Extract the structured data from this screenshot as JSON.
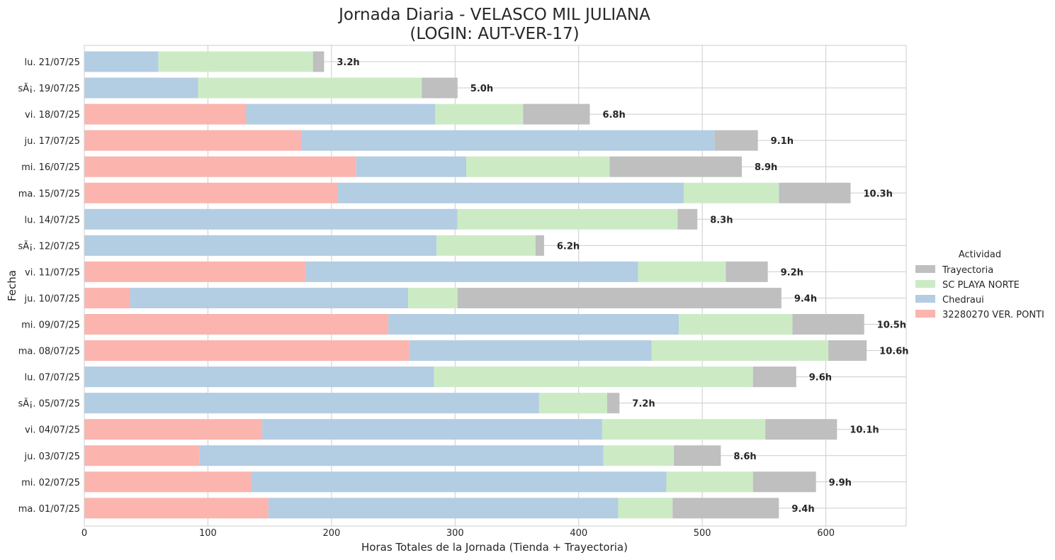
{
  "chart_data": {
    "type": "bar",
    "orientation": "horizontal",
    "stacked": true,
    "title": "Jornada Diaria - VELASCO MIL JULIANA",
    "subtitle": "(LOGIN: AUT-VER-17)",
    "xlabel": "Horas Totales de la Jornada (Tienda + Trayectoria)",
    "ylabel": "Fecha",
    "xlim": [
      0,
      665
    ],
    "xticks": [
      0,
      100,
      200,
      300,
      400,
      500,
      600
    ],
    "grid": true,
    "legend_title": "Actividad",
    "legend_placement": "right",
    "categories": [
      "lu. 21/07/25",
      "sÃ¡. 19/07/25",
      "vi. 18/07/25",
      "ju. 17/07/25",
      "mi. 16/07/25",
      "ma. 15/07/25",
      "lu. 14/07/25",
      "sÃ¡. 12/07/25",
      "vi. 11/07/25",
      "ju. 10/07/25",
      "mi. 09/07/25",
      "ma. 08/07/25",
      "lu. 07/07/25",
      "sÃ¡. 05/07/25",
      "vi. 04/07/25",
      "ju. 03/07/25",
      "mi. 02/07/25",
      "ma. 01/07/25"
    ],
    "series": [
      {
        "name": "32280270 VER. PONTI",
        "color": "#fbb4ae",
        "values": [
          0,
          0,
          131,
          176,
          220,
          205,
          0,
          0,
          179,
          37,
          246,
          263,
          0,
          0,
          144,
          93,
          135,
          149
        ]
      },
      {
        "name": "Chedraui",
        "color": "#b3cde3",
        "values": [
          60,
          92,
          153,
          334,
          89,
          280,
          302,
          285,
          269,
          225,
          235,
          196,
          283,
          368,
          275,
          327,
          336,
          283
        ]
      },
      {
        "name": "SC PLAYA NORTE",
        "color": "#ccebc5",
        "values": [
          125,
          181,
          71,
          0,
          116,
          77,
          178,
          80,
          71,
          40,
          92,
          143,
          258,
          55,
          132,
          57,
          70,
          44
        ]
      },
      {
        "name": "Trayectoria",
        "color": "#bfbfbf",
        "values": [
          9,
          29,
          54,
          35,
          107,
          58,
          16,
          7,
          34,
          262,
          58,
          31,
          35,
          10,
          58,
          38,
          51,
          86
        ]
      }
    ],
    "totals_labels": [
      "3.2h",
      "5.0h",
      "6.8h",
      "9.1h",
      "8.9h",
      "10.3h",
      "8.3h",
      "6.2h",
      "9.2h",
      "9.4h",
      "10.5h",
      "10.6h",
      "9.6h",
      "7.2h",
      "10.1h",
      "8.6h",
      "9.9h",
      "9.4h"
    ],
    "legend_order": [
      "Trayectoria",
      "SC PLAYA NORTE",
      "Chedraui",
      "32280270 VER. PONTI"
    ]
  }
}
